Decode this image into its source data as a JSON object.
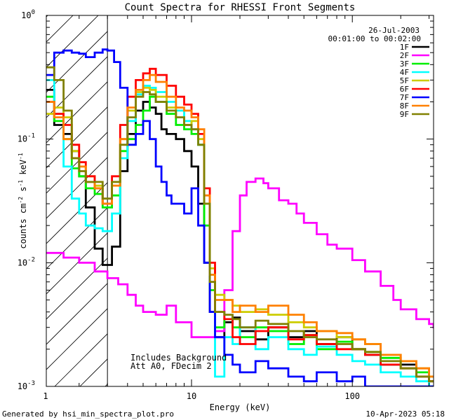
{
  "chart_data": {
    "type": "line",
    "title": "Count Spectra for RHESSI Front Segments",
    "xlabel": "Energy (keV)",
    "ylabel_parts": [
      "counts cm",
      "-2",
      " s",
      "-1",
      " keV",
      "-1"
    ],
    "xscale": "log",
    "yscale": "log",
    "xlim": [
      1.25,
      320
    ],
    "ylim": [
      0.001,
      1.0
    ],
    "x_ticks": [
      {
        "value": 1,
        "label": "1"
      },
      {
        "value": 10,
        "label": "10"
      },
      {
        "value": 100,
        "label": "100"
      }
    ],
    "y_ticks": [
      {
        "value": 0.001,
        "base": "10",
        "exp": "-3"
      },
      {
        "value": 0.01,
        "base": "10",
        "exp": "-2"
      },
      {
        "value": 0.1,
        "base": "10",
        "exp": "-1"
      },
      {
        "value": 1,
        "base": "10",
        "exp": "0"
      }
    ],
    "date": "26-Jul-2003",
    "time_range": "00:01:00 to 00:02:00",
    "shaded_region_upper_kev": 3.0,
    "annotation_lines": [
      "Includes Background",
      "Att A0, FDecim 2"
    ],
    "footer_left": "Generated by hsi_min_spectra_plot.pro",
    "footer_right": "10-Apr-2023 05:18",
    "series": [
      {
        "name": "1F",
        "color": "#000000",
        "x": [
          1.25,
          1.4,
          1.6,
          1.8,
          2.0,
          2.2,
          2.5,
          2.8,
          3.2,
          3.6,
          4.0,
          4.5,
          5.0,
          5.5,
          6.0,
          6.5,
          7.0,
          8.0,
          9.0,
          10.0,
          11.0,
          12.0,
          13.0,
          14.0,
          16.0,
          18.0,
          20.0,
          25.0,
          30.0,
          40.0,
          50.0,
          60.0,
          80.0,
          100.0,
          120.0,
          150.0,
          200.0,
          250.0,
          300.0
        ],
        "y": [
          0.25,
          0.13,
          0.11,
          0.08,
          0.05,
          0.028,
          0.013,
          0.0096,
          0.0135,
          0.055,
          0.11,
          0.17,
          0.2,
          0.18,
          0.16,
          0.12,
          0.11,
          0.1,
          0.08,
          0.06,
          0.03,
          0.01,
          0.004,
          0.0025,
          0.0033,
          0.0036,
          0.0028,
          0.0024,
          0.003,
          0.0025,
          0.0028,
          0.0022,
          0.0025,
          0.002,
          0.0018,
          0.0015,
          0.0015,
          0.0012,
          0.0011
        ]
      },
      {
        "name": "2F",
        "color": "#ff00ff",
        "x": [
          1.25,
          1.6,
          2.0,
          2.5,
          3.0,
          3.5,
          4.0,
          4.5,
          5.0,
          6.0,
          7.0,
          8.0,
          10.0,
          12.0,
          14.0,
          16.0,
          18.0,
          20.0,
          22.0,
          25.0,
          28.0,
          30.0,
          35.0,
          40.0,
          45.0,
          50.0,
          60.0,
          70.0,
          80.0,
          100.0,
          120.0,
          150.0,
          180.0,
          200.0,
          250.0,
          300.0,
          320.0
        ],
        "y": [
          0.012,
          0.011,
          0.01,
          0.0085,
          0.0075,
          0.0067,
          0.0055,
          0.0045,
          0.004,
          0.0038,
          0.0045,
          0.0033,
          0.0025,
          0.0025,
          0.0028,
          0.006,
          0.018,
          0.035,
          0.045,
          0.048,
          0.044,
          0.04,
          0.032,
          0.03,
          0.025,
          0.021,
          0.017,
          0.014,
          0.013,
          0.0105,
          0.0085,
          0.0065,
          0.005,
          0.0042,
          0.0035,
          0.0032,
          0.003
        ]
      },
      {
        "name": "3F",
        "color": "#00ee00",
        "x": [
          1.25,
          1.4,
          1.6,
          1.8,
          2.0,
          2.2,
          2.5,
          2.8,
          3.2,
          3.6,
          4.0,
          4.5,
          5.0,
          5.5,
          6.0,
          7.0,
          8.0,
          9.0,
          10.0,
          11.0,
          12.0,
          13.0,
          14.0,
          16.0,
          18.0,
          20.0,
          25.0,
          30.0,
          40.0,
          50.0,
          60.0,
          80.0,
          100.0,
          120.0,
          150.0,
          200.0,
          250.0,
          300.0
        ],
        "y": [
          0.22,
          0.14,
          0.1,
          0.058,
          0.05,
          0.04,
          0.036,
          0.028,
          0.035,
          0.08,
          0.1,
          0.13,
          0.17,
          0.22,
          0.2,
          0.16,
          0.13,
          0.12,
          0.11,
          0.09,
          0.02,
          0.006,
          0.003,
          0.0035,
          0.003,
          0.0025,
          0.003,
          0.0028,
          0.0022,
          0.0026,
          0.002,
          0.0023,
          0.002,
          0.0019,
          0.0017,
          0.0014,
          0.0013,
          0.0012
        ]
      },
      {
        "name": "4F",
        "color": "#00ffff",
        "x": [
          1.25,
          1.4,
          1.6,
          1.8,
          2.0,
          2.2,
          2.5,
          2.8,
          3.2,
          3.6,
          4.0,
          4.5,
          5.0,
          5.5,
          6.0,
          7.0,
          8.0,
          9.0,
          10.0,
          11.0,
          12.0,
          13.0,
          14.0,
          16.0,
          18.0,
          20.0,
          25.0,
          30.0,
          40.0,
          50.0,
          60.0,
          80.0,
          100.0,
          120.0,
          150.0,
          200.0,
          250.0,
          300.0
        ],
        "y": [
          0.3,
          0.16,
          0.06,
          0.033,
          0.025,
          0.02,
          0.019,
          0.018,
          0.025,
          0.07,
          0.14,
          0.23,
          0.27,
          0.26,
          0.24,
          0.2,
          0.17,
          0.14,
          0.12,
          0.09,
          0.03,
          0.008,
          0.0012,
          0.0025,
          0.0022,
          0.003,
          0.002,
          0.0025,
          0.002,
          0.0018,
          0.0021,
          0.0018,
          0.0016,
          0.0015,
          0.0013,
          0.0012,
          0.0011,
          0.001
        ]
      },
      {
        "name": "5F",
        "color": "#cccc00",
        "x": [
          1.25,
          1.4,
          1.6,
          1.8,
          2.0,
          2.2,
          2.5,
          2.8,
          3.2,
          3.6,
          4.0,
          4.5,
          5.0,
          5.5,
          6.0,
          7.0,
          8.0,
          9.0,
          10.0,
          11.0,
          12.0,
          13.0,
          14.0,
          16.0,
          18.0,
          20.0,
          25.0,
          30.0,
          40.0,
          50.0,
          60.0,
          80.0,
          100.0,
          120.0,
          150.0,
          200.0,
          250.0,
          300.0
        ],
        "y": [
          0.16,
          0.18,
          0.15,
          0.08,
          0.06,
          0.05,
          0.042,
          0.03,
          0.045,
          0.1,
          0.17,
          0.24,
          0.26,
          0.25,
          0.22,
          0.18,
          0.15,
          0.13,
          0.14,
          0.1,
          0.03,
          0.009,
          0.0055,
          0.005,
          0.0045,
          0.004,
          0.0042,
          0.0038,
          0.0033,
          0.003,
          0.0028,
          0.0025,
          0.0024,
          0.0022,
          0.0018,
          0.0016,
          0.0014,
          0.0012
        ]
      },
      {
        "name": "6F",
        "color": "#ff0000",
        "x": [
          1.25,
          1.4,
          1.6,
          1.8,
          2.0,
          2.2,
          2.5,
          2.8,
          3.2,
          3.6,
          4.0,
          4.5,
          5.0,
          5.5,
          6.0,
          7.0,
          8.0,
          9.0,
          10.0,
          11.0,
          12.0,
          13.0,
          14.0,
          16.0,
          18.0,
          20.0,
          25.0,
          30.0,
          40.0,
          50.0,
          60.0,
          80.0,
          100.0,
          120.0,
          150.0,
          200.0,
          250.0,
          300.0
        ],
        "y": [
          0.2,
          0.16,
          0.13,
          0.09,
          0.065,
          0.05,
          0.04,
          0.03,
          0.05,
          0.13,
          0.22,
          0.3,
          0.34,
          0.37,
          0.33,
          0.27,
          0.22,
          0.19,
          0.16,
          0.11,
          0.04,
          0.01,
          0.004,
          0.0035,
          0.0025,
          0.0022,
          0.0028,
          0.003,
          0.0024,
          0.0026,
          0.0022,
          0.002,
          0.002,
          0.0018,
          0.0015,
          0.0014,
          0.0012,
          0.0011
        ]
      },
      {
        "name": "7F",
        "color": "#0000ff",
        "x": [
          1.25,
          1.4,
          1.6,
          1.8,
          2.0,
          2.2,
          2.5,
          2.8,
          3.0,
          3.3,
          3.6,
          4.0,
          4.5,
          5.0,
          5.5,
          6.0,
          6.5,
          7.0,
          7.5,
          8.0,
          9.0,
          10.0,
          11.0,
          12.0,
          13.0,
          14.0,
          16.0,
          18.0,
          20.0,
          25.0,
          30.0,
          40.0,
          50.0,
          60.0,
          80.0,
          100.0,
          120.0,
          150.0,
          200.0,
          250.0,
          300.0
        ],
        "y": [
          0.33,
          0.5,
          0.52,
          0.5,
          0.49,
          0.46,
          0.5,
          0.53,
          0.52,
          0.42,
          0.26,
          0.09,
          0.11,
          0.14,
          0.1,
          0.06,
          0.045,
          0.035,
          0.03,
          0.03,
          0.025,
          0.04,
          0.02,
          0.01,
          0.004,
          0.0025,
          0.0018,
          0.0015,
          0.0013,
          0.0016,
          0.0014,
          0.0012,
          0.0011,
          0.0013,
          0.0011,
          0.0012,
          0.001,
          0.001,
          0.001,
          0.001,
          0.001
        ]
      },
      {
        "name": "8F",
        "color": "#ff8000",
        "x": [
          1.25,
          1.4,
          1.6,
          1.8,
          2.0,
          2.2,
          2.5,
          2.8,
          3.2,
          3.6,
          4.0,
          4.5,
          5.0,
          5.5,
          6.0,
          7.0,
          8.0,
          9.0,
          10.0,
          11.0,
          12.0,
          13.0,
          14.0,
          16.0,
          18.0,
          20.0,
          25.0,
          30.0,
          40.0,
          50.0,
          60.0,
          80.0,
          100.0,
          120.0,
          150.0,
          200.0,
          250.0,
          300.0
        ],
        "y": [
          0.2,
          0.15,
          0.1,
          0.07,
          0.06,
          0.045,
          0.04,
          0.03,
          0.042,
          0.1,
          0.18,
          0.25,
          0.3,
          0.33,
          0.29,
          0.22,
          0.18,
          0.17,
          0.15,
          0.12,
          0.035,
          0.008,
          0.005,
          0.005,
          0.004,
          0.0045,
          0.004,
          0.0045,
          0.0038,
          0.0033,
          0.0028,
          0.0027,
          0.0024,
          0.0022,
          0.0018,
          0.0016,
          0.0014,
          0.0012
        ]
      },
      {
        "name": "9F",
        "color": "#808000",
        "x": [
          1.25,
          1.4,
          1.6,
          1.8,
          2.0,
          2.2,
          2.5,
          2.8,
          3.2,
          3.6,
          4.0,
          4.5,
          5.0,
          5.5,
          6.0,
          7.0,
          8.0,
          9.0,
          10.0,
          11.0,
          12.0,
          13.0,
          14.0,
          16.0,
          18.0,
          20.0,
          25.0,
          30.0,
          40.0,
          50.0,
          60.0,
          80.0,
          100.0,
          120.0,
          150.0,
          200.0,
          250.0,
          300.0
        ],
        "y": [
          0.38,
          0.3,
          0.17,
          0.07,
          0.055,
          0.045,
          0.045,
          0.033,
          0.045,
          0.09,
          0.15,
          0.22,
          0.24,
          0.23,
          0.2,
          0.17,
          0.15,
          0.13,
          0.12,
          0.09,
          0.03,
          0.007,
          0.004,
          0.0038,
          0.0035,
          0.003,
          0.0034,
          0.0032,
          0.0028,
          0.0025,
          0.0024,
          0.0022,
          0.002,
          0.0019,
          0.0016,
          0.0014,
          0.0012,
          0.0011
        ]
      }
    ]
  }
}
